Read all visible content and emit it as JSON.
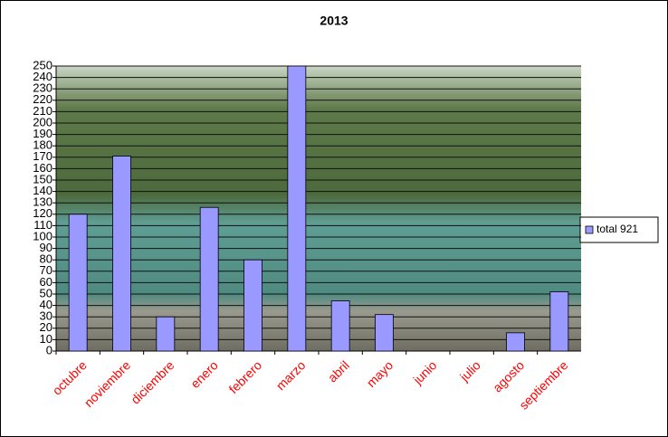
{
  "chart_data": {
    "type": "bar",
    "title": "2013",
    "categories": [
      "octubre",
      "noviembre",
      "diciembre",
      "enero",
      "febrero",
      "marzo",
      "abril",
      "mayo",
      "junio",
      "julio",
      "agosto",
      "septiembre"
    ],
    "series": [
      {
        "name": "total 921",
        "color": "#9999ff",
        "values": [
          120,
          171,
          30,
          126,
          80,
          250,
          44,
          32,
          0,
          0,
          16,
          52
        ]
      }
    ],
    "ylim": [
      0,
      250
    ],
    "yticks": [
      0,
      10,
      20,
      30,
      40,
      50,
      60,
      70,
      80,
      90,
      100,
      110,
      120,
      130,
      140,
      150,
      160,
      170,
      180,
      190,
      200,
      210,
      220,
      230,
      240,
      250
    ],
    "grid": true,
    "legend": "right",
    "category_label_color": "#ff0000"
  }
}
